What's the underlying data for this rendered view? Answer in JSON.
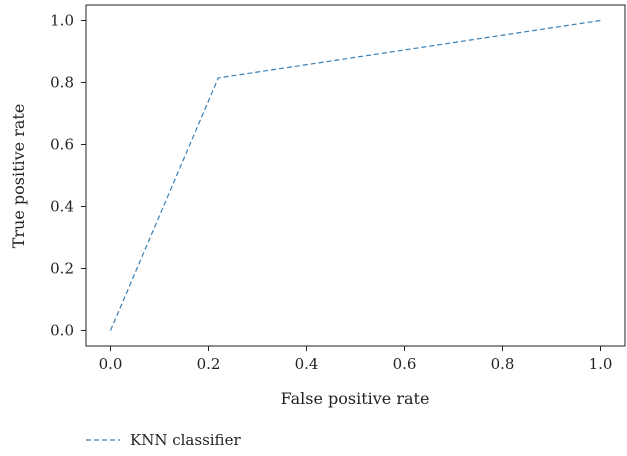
{
  "chart_data": {
    "type": "line",
    "xlabel": "False positive rate",
    "ylabel": "True positive rate",
    "xlim": [
      -0.05,
      1.05
    ],
    "ylim": [
      -0.05,
      1.05
    ],
    "xticks": [
      "0.0",
      "0.2",
      "0.4",
      "0.6",
      "0.8",
      "1.0"
    ],
    "yticks": [
      "0.0",
      "0.2",
      "0.4",
      "0.6",
      "0.8",
      "1.0"
    ],
    "grid": false,
    "legend_position": "bottom-left",
    "series": [
      {
        "name": "KNN classifier",
        "color": "#3b7fb3",
        "line_style": "dashed",
        "x": [
          0.0,
          0.22,
          1.0
        ],
        "y": [
          0.0,
          0.815,
          1.0
        ]
      }
    ]
  }
}
